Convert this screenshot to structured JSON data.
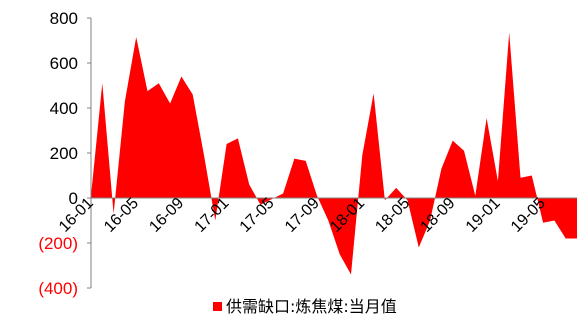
{
  "chart_data": {
    "type": "area",
    "title": "",
    "xlabel": "",
    "ylabel": "",
    "ylim": [
      -400,
      800
    ],
    "y_ticks": [
      800,
      600,
      400,
      200,
      0,
      -200,
      -400
    ],
    "y_tick_labels": [
      "800",
      "600",
      "400",
      "200",
      "0",
      "(200)",
      "(400)"
    ],
    "x_tick_labels": [
      "16-01",
      "16-05",
      "16-09",
      "17-01",
      "17-05",
      "17-09",
      "18-01",
      "18-05",
      "18-09",
      "19-01",
      "19-05"
    ],
    "grid": false,
    "legend_position": "bottom",
    "colors": {
      "series": "#ff0000",
      "axis": "#808080",
      "negative_label": "#ff0000"
    },
    "x": [
      "16-01",
      "16-02",
      "16-03",
      "16-04",
      "16-05",
      "16-06",
      "16-07",
      "16-08",
      "16-09",
      "16-10",
      "16-11",
      "16-12",
      "17-01",
      "17-02",
      "17-03",
      "17-04",
      "17-05",
      "17-06",
      "17-07",
      "17-08",
      "17-09",
      "17-10",
      "17-11",
      "17-12",
      "18-01",
      "18-02",
      "18-03",
      "18-04",
      "18-05",
      "18-06",
      "18-07",
      "18-08",
      "18-09",
      "18-10",
      "18-11",
      "18-12",
      "19-01",
      "19-02",
      "19-03",
      "19-04",
      "19-05",
      "19-06",
      "19-07",
      "19-08"
    ],
    "series": [
      {
        "name": "供需缺口:炼焦煤:当月值",
        "values": [
          10,
          510,
          -70,
          430,
          715,
          475,
          510,
          420,
          540,
          460,
          190,
          -100,
          240,
          265,
          60,
          -30,
          -5,
          20,
          175,
          165,
          10,
          -100,
          -250,
          -340,
          190,
          465,
          -10,
          45,
          -10,
          -220,
          -100,
          130,
          255,
          210,
          10,
          355,
          75,
          735,
          90,
          100,
          -110,
          -100,
          -180,
          -180
        ]
      }
    ]
  }
}
